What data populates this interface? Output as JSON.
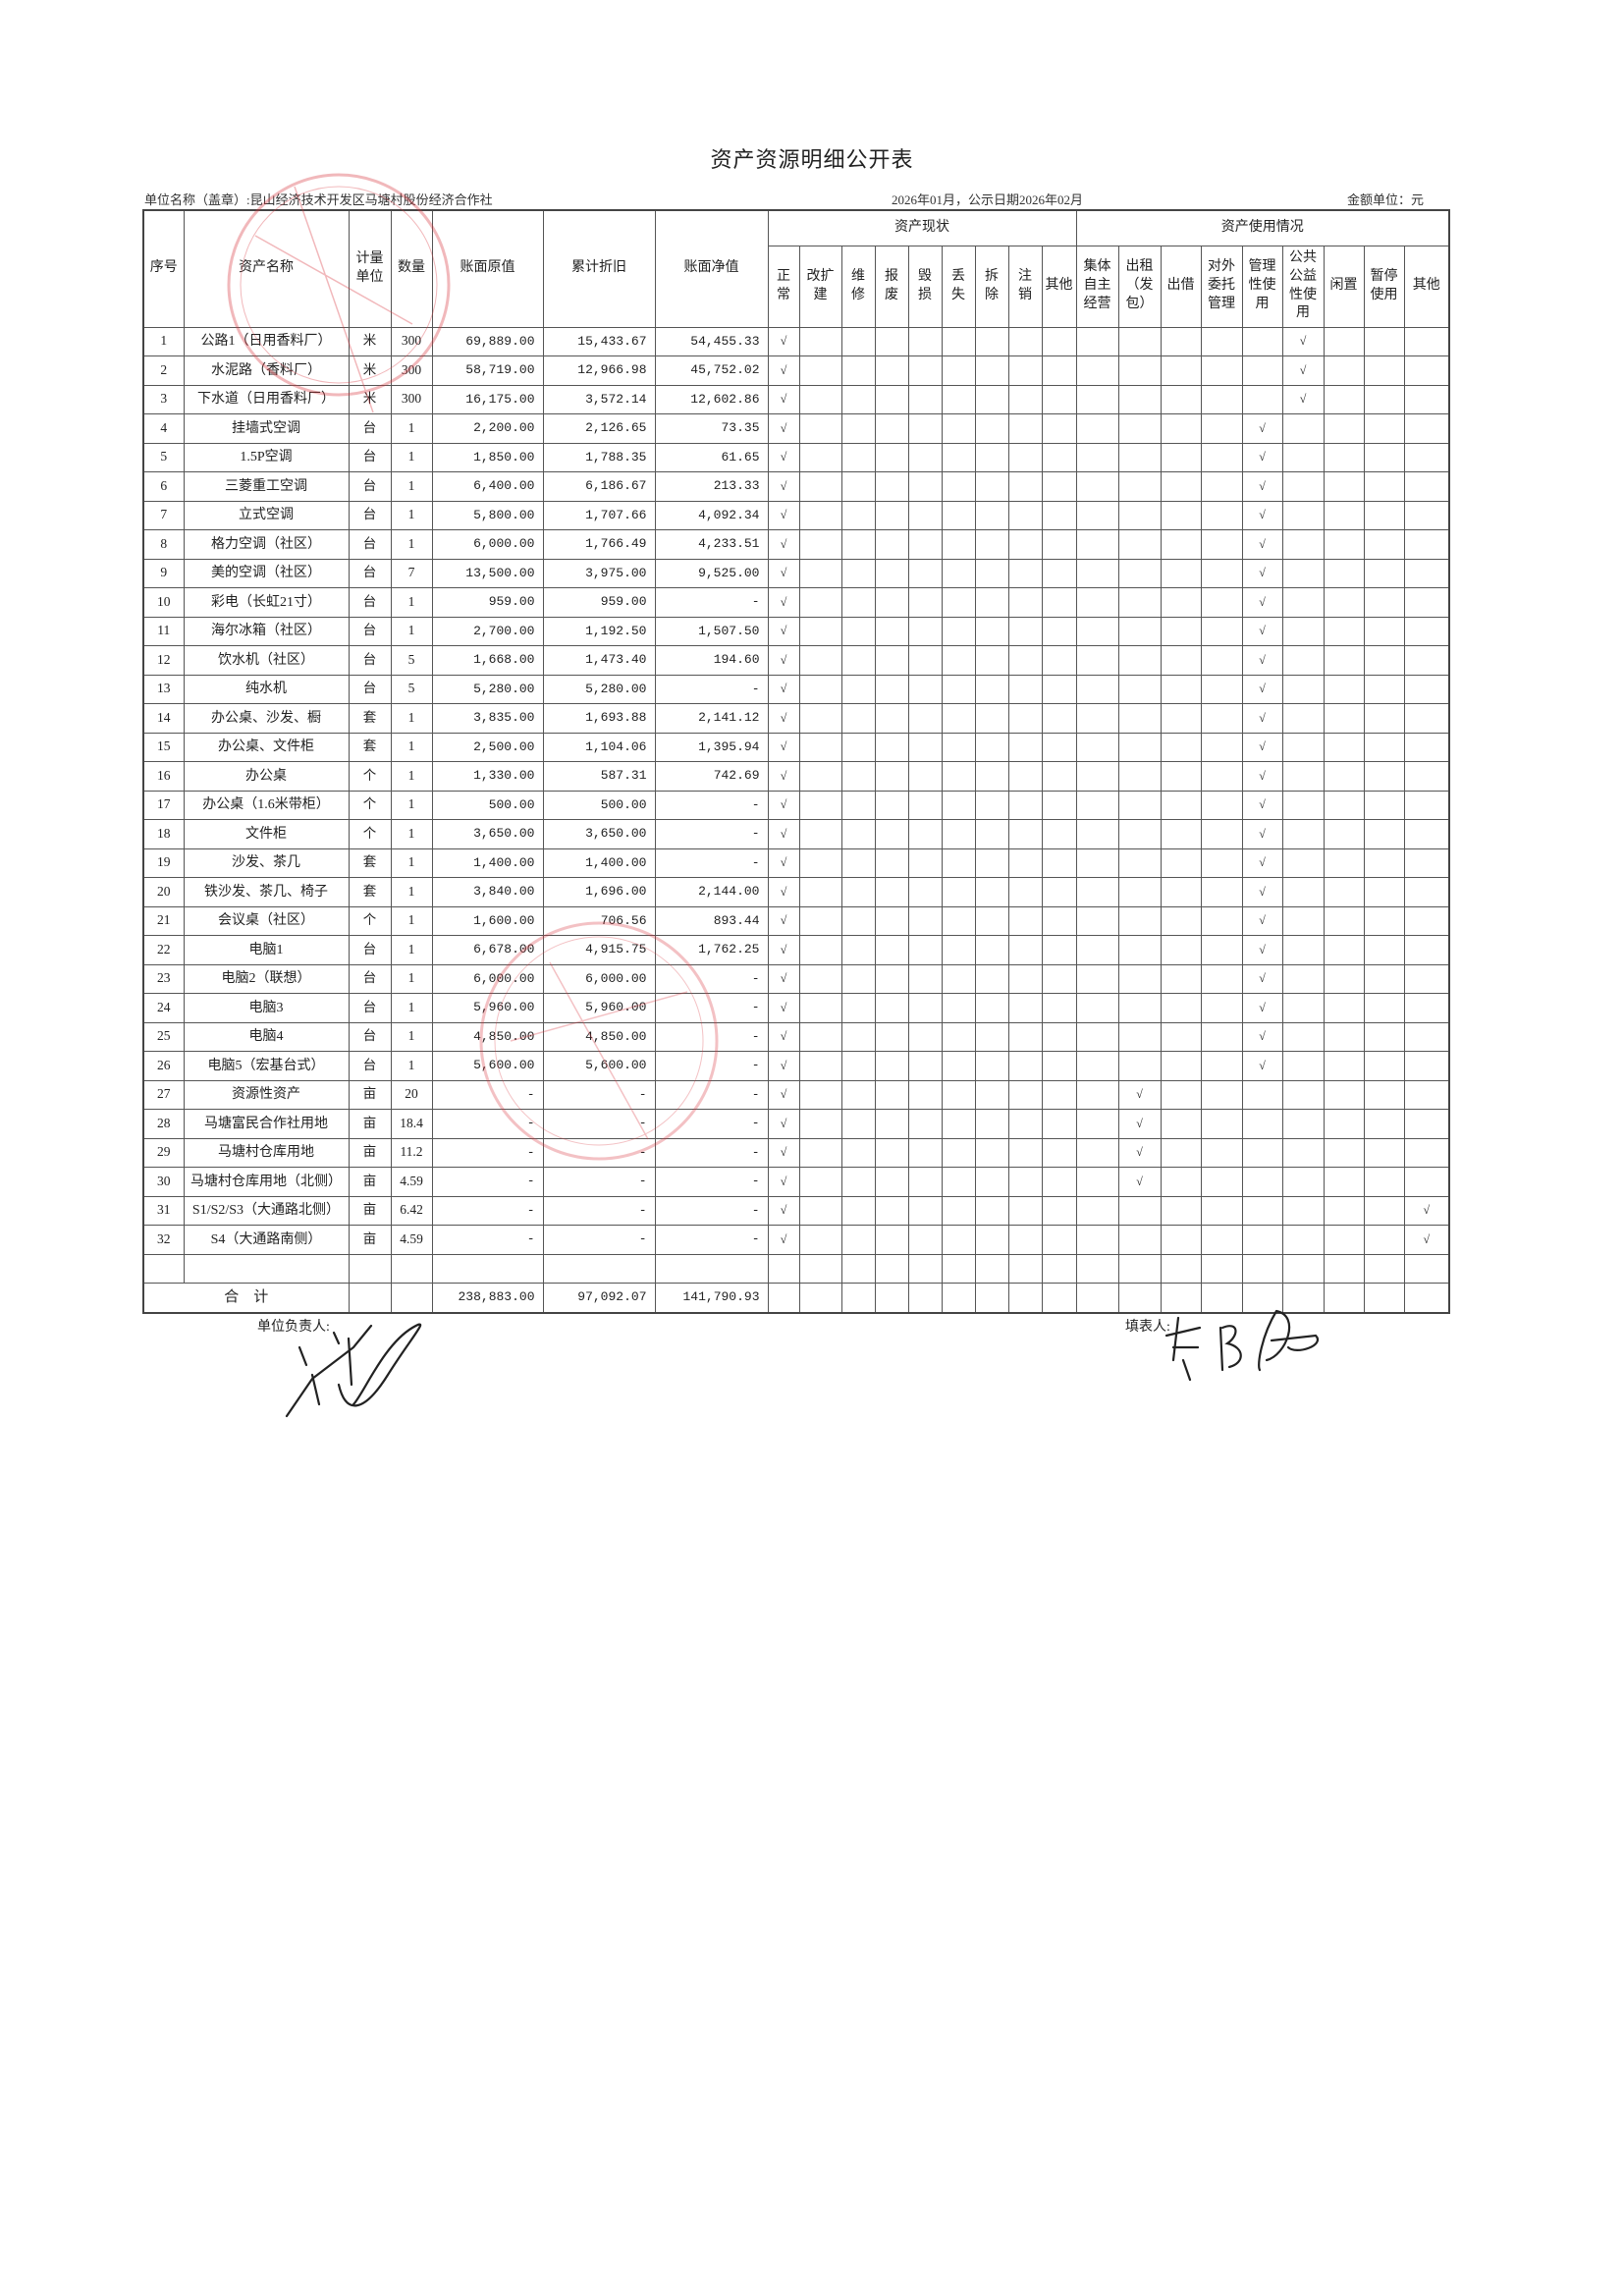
{
  "title": "资产资源明细公开表",
  "unit_name": "单位名称（盖章）:昆山经济技术开发区马塘村股份经济合作社",
  "period": "2026年01月，公示日期2026年02月",
  "currency_unit": "金额单位：元",
  "headers": {
    "seq": "序号",
    "name": "资产名称",
    "unit": "计量\n单位",
    "qty": "数量",
    "original": "账面原值",
    "depreciation": "累计折旧",
    "net": "账面净值",
    "status_group": "资产现状",
    "usage_group": "资产使用情况",
    "status": [
      "正\n常",
      "改扩\n建",
      "维\n修",
      "报\n废",
      "毁\n损",
      "丢\n失",
      "拆\n除",
      "注\n销",
      "其他"
    ],
    "usage": [
      "集体\n自主\n经营",
      "出租\n（发\n包）",
      "出借",
      "对外\n委托\n管理",
      "管理\n性使\n用",
      "公共\n公益\n性使\n用",
      "闲置",
      "暂停\n使用",
      "其他"
    ]
  },
  "check_mark": "√",
  "rows": [
    {
      "seq": "1",
      "name": "公路1（日用香料厂）",
      "unit": "米",
      "qty": "300",
      "original": "69,889.00",
      "depreciation": "15,433.67",
      "net": "54,455.33",
      "status": "正常",
      "usage": "公共公益性使用"
    },
    {
      "seq": "2",
      "name": "水泥路（香料厂）",
      "unit": "米",
      "qty": "300",
      "original": "58,719.00",
      "depreciation": "12,966.98",
      "net": "45,752.02",
      "status": "正常",
      "usage": "公共公益性使用"
    },
    {
      "seq": "3",
      "name": "下水道（日用香料厂）",
      "unit": "米",
      "qty": "300",
      "original": "16,175.00",
      "depreciation": "3,572.14",
      "net": "12,602.86",
      "status": "正常",
      "usage": "公共公益性使用"
    },
    {
      "seq": "4",
      "name": "挂墙式空调",
      "unit": "台",
      "qty": "1",
      "original": "2,200.00",
      "depreciation": "2,126.65",
      "net": "73.35",
      "status": "正常",
      "usage": "管理性使用"
    },
    {
      "seq": "5",
      "name": "1.5P空调",
      "unit": "台",
      "qty": "1",
      "original": "1,850.00",
      "depreciation": "1,788.35",
      "net": "61.65",
      "status": "正常",
      "usage": "管理性使用"
    },
    {
      "seq": "6",
      "name": "三菱重工空调",
      "unit": "台",
      "qty": "1",
      "original": "6,400.00",
      "depreciation": "6,186.67",
      "net": "213.33",
      "status": "正常",
      "usage": "管理性使用"
    },
    {
      "seq": "7",
      "name": "立式空调",
      "unit": "台",
      "qty": "1",
      "original": "5,800.00",
      "depreciation": "1,707.66",
      "net": "4,092.34",
      "status": "正常",
      "usage": "管理性使用"
    },
    {
      "seq": "8",
      "name": "格力空调（社区）",
      "unit": "台",
      "qty": "1",
      "original": "6,000.00",
      "depreciation": "1,766.49",
      "net": "4,233.51",
      "status": "正常",
      "usage": "管理性使用"
    },
    {
      "seq": "9",
      "name": "美的空调（社区）",
      "unit": "台",
      "qty": "7",
      "original": "13,500.00",
      "depreciation": "3,975.00",
      "net": "9,525.00",
      "status": "正常",
      "usage": "管理性使用"
    },
    {
      "seq": "10",
      "name": "彩电（长虹21寸）",
      "unit": "台",
      "qty": "1",
      "original": "959.00",
      "depreciation": "959.00",
      "net": "-",
      "status": "正常",
      "usage": "管理性使用"
    },
    {
      "seq": "11",
      "name": "海尔冰箱（社区）",
      "unit": "台",
      "qty": "1",
      "original": "2,700.00",
      "depreciation": "1,192.50",
      "net": "1,507.50",
      "status": "正常",
      "usage": "管理性使用"
    },
    {
      "seq": "12",
      "name": "饮水机（社区）",
      "unit": "台",
      "qty": "5",
      "original": "1,668.00",
      "depreciation": "1,473.40",
      "net": "194.60",
      "status": "正常",
      "usage": "管理性使用"
    },
    {
      "seq": "13",
      "name": "纯水机",
      "unit": "台",
      "qty": "5",
      "original": "5,280.00",
      "depreciation": "5,280.00",
      "net": "-",
      "status": "正常",
      "usage": "管理性使用"
    },
    {
      "seq": "14",
      "name": "办公桌、沙发、橱",
      "unit": "套",
      "qty": "1",
      "original": "3,835.00",
      "depreciation": "1,693.88",
      "net": "2,141.12",
      "status": "正常",
      "usage": "管理性使用"
    },
    {
      "seq": "15",
      "name": "办公桌、文件柜",
      "unit": "套",
      "qty": "1",
      "original": "2,500.00",
      "depreciation": "1,104.06",
      "net": "1,395.94",
      "status": "正常",
      "usage": "管理性使用"
    },
    {
      "seq": "16",
      "name": "办公桌",
      "unit": "个",
      "qty": "1",
      "original": "1,330.00",
      "depreciation": "587.31",
      "net": "742.69",
      "status": "正常",
      "usage": "管理性使用"
    },
    {
      "seq": "17",
      "name": "办公桌（1.6米带柜）",
      "unit": "个",
      "qty": "1",
      "original": "500.00",
      "depreciation": "500.00",
      "net": "-",
      "status": "正常",
      "usage": "管理性使用"
    },
    {
      "seq": "18",
      "name": "文件柜",
      "unit": "个",
      "qty": "1",
      "original": "3,650.00",
      "depreciation": "3,650.00",
      "net": "-",
      "status": "正常",
      "usage": "管理性使用"
    },
    {
      "seq": "19",
      "name": "沙发、茶几",
      "unit": "套",
      "qty": "1",
      "original": "1,400.00",
      "depreciation": "1,400.00",
      "net": "-",
      "status": "正常",
      "usage": "管理性使用"
    },
    {
      "seq": "20",
      "name": "铁沙发、茶几、椅子",
      "unit": "套",
      "qty": "1",
      "original": "3,840.00",
      "depreciation": "1,696.00",
      "net": "2,144.00",
      "status": "正常",
      "usage": "管理性使用"
    },
    {
      "seq": "21",
      "name": "会议桌（社区）",
      "unit": "个",
      "qty": "1",
      "original": "1,600.00",
      "depreciation": "706.56",
      "net": "893.44",
      "status": "正常",
      "usage": "管理性使用"
    },
    {
      "seq": "22",
      "name": "电脑1",
      "unit": "台",
      "qty": "1",
      "original": "6,678.00",
      "depreciation": "4,915.75",
      "net": "1,762.25",
      "status": "正常",
      "usage": "管理性使用"
    },
    {
      "seq": "23",
      "name": "电脑2（联想）",
      "unit": "台",
      "qty": "1",
      "original": "6,000.00",
      "depreciation": "6,000.00",
      "net": "-",
      "status": "正常",
      "usage": "管理性使用"
    },
    {
      "seq": "24",
      "name": "电脑3",
      "unit": "台",
      "qty": "1",
      "original": "5,960.00",
      "depreciation": "5,960.00",
      "net": "-",
      "status": "正常",
      "usage": "管理性使用"
    },
    {
      "seq": "25",
      "name": "电脑4",
      "unit": "台",
      "qty": "1",
      "original": "4,850.00",
      "depreciation": "4,850.00",
      "net": "-",
      "status": "正常",
      "usage": "管理性使用"
    },
    {
      "seq": "26",
      "name": "电脑5（宏基台式）",
      "unit": "台",
      "qty": "1",
      "original": "5,600.00",
      "depreciation": "5,600.00",
      "net": "-",
      "status": "正常",
      "usage": "管理性使用"
    },
    {
      "seq": "27",
      "name": "资源性资产",
      "unit": "亩",
      "qty": "20",
      "original": "-",
      "depreciation": "-",
      "net": "-",
      "status": "正常",
      "usage": "出租（发包）"
    },
    {
      "seq": "28",
      "name": "马塘富民合作社用地",
      "unit": "亩",
      "qty": "18.4",
      "original": "-",
      "depreciation": "-",
      "net": "-",
      "status": "正常",
      "usage": "出租（发包）"
    },
    {
      "seq": "29",
      "name": "马塘村仓库用地",
      "unit": "亩",
      "qty": "11.2",
      "original": "-",
      "depreciation": "-",
      "net": "-",
      "status": "正常",
      "usage": "出租（发包）"
    },
    {
      "seq": "30",
      "name": "马塘村仓库用地（北侧）",
      "unit": "亩",
      "qty": "4.59",
      "original": "-",
      "depreciation": "-",
      "net": "-",
      "status": "正常",
      "usage": "出租（发包）"
    },
    {
      "seq": "31",
      "name": "S1/S2/S3（大通路北侧）",
      "unit": "亩",
      "qty": "6.42",
      "original": "-",
      "depreciation": "-",
      "net": "-",
      "status": "正常",
      "usage": "其他"
    },
    {
      "seq": "32",
      "name": "S4（大通路南侧）",
      "unit": "亩",
      "qty": "4.59",
      "original": "-",
      "depreciation": "-",
      "net": "-",
      "status": "正常",
      "usage": "其他"
    }
  ],
  "total": {
    "label": "合    计",
    "original": "238,883.00",
    "depreciation": "97,092.07",
    "net": "141,790.93"
  },
  "footer": {
    "leader_label": "单位负责人:",
    "preparer_label": "填表人:"
  },
  "colors": {
    "ink": "#222222",
    "stamp": "#d9363e"
  }
}
